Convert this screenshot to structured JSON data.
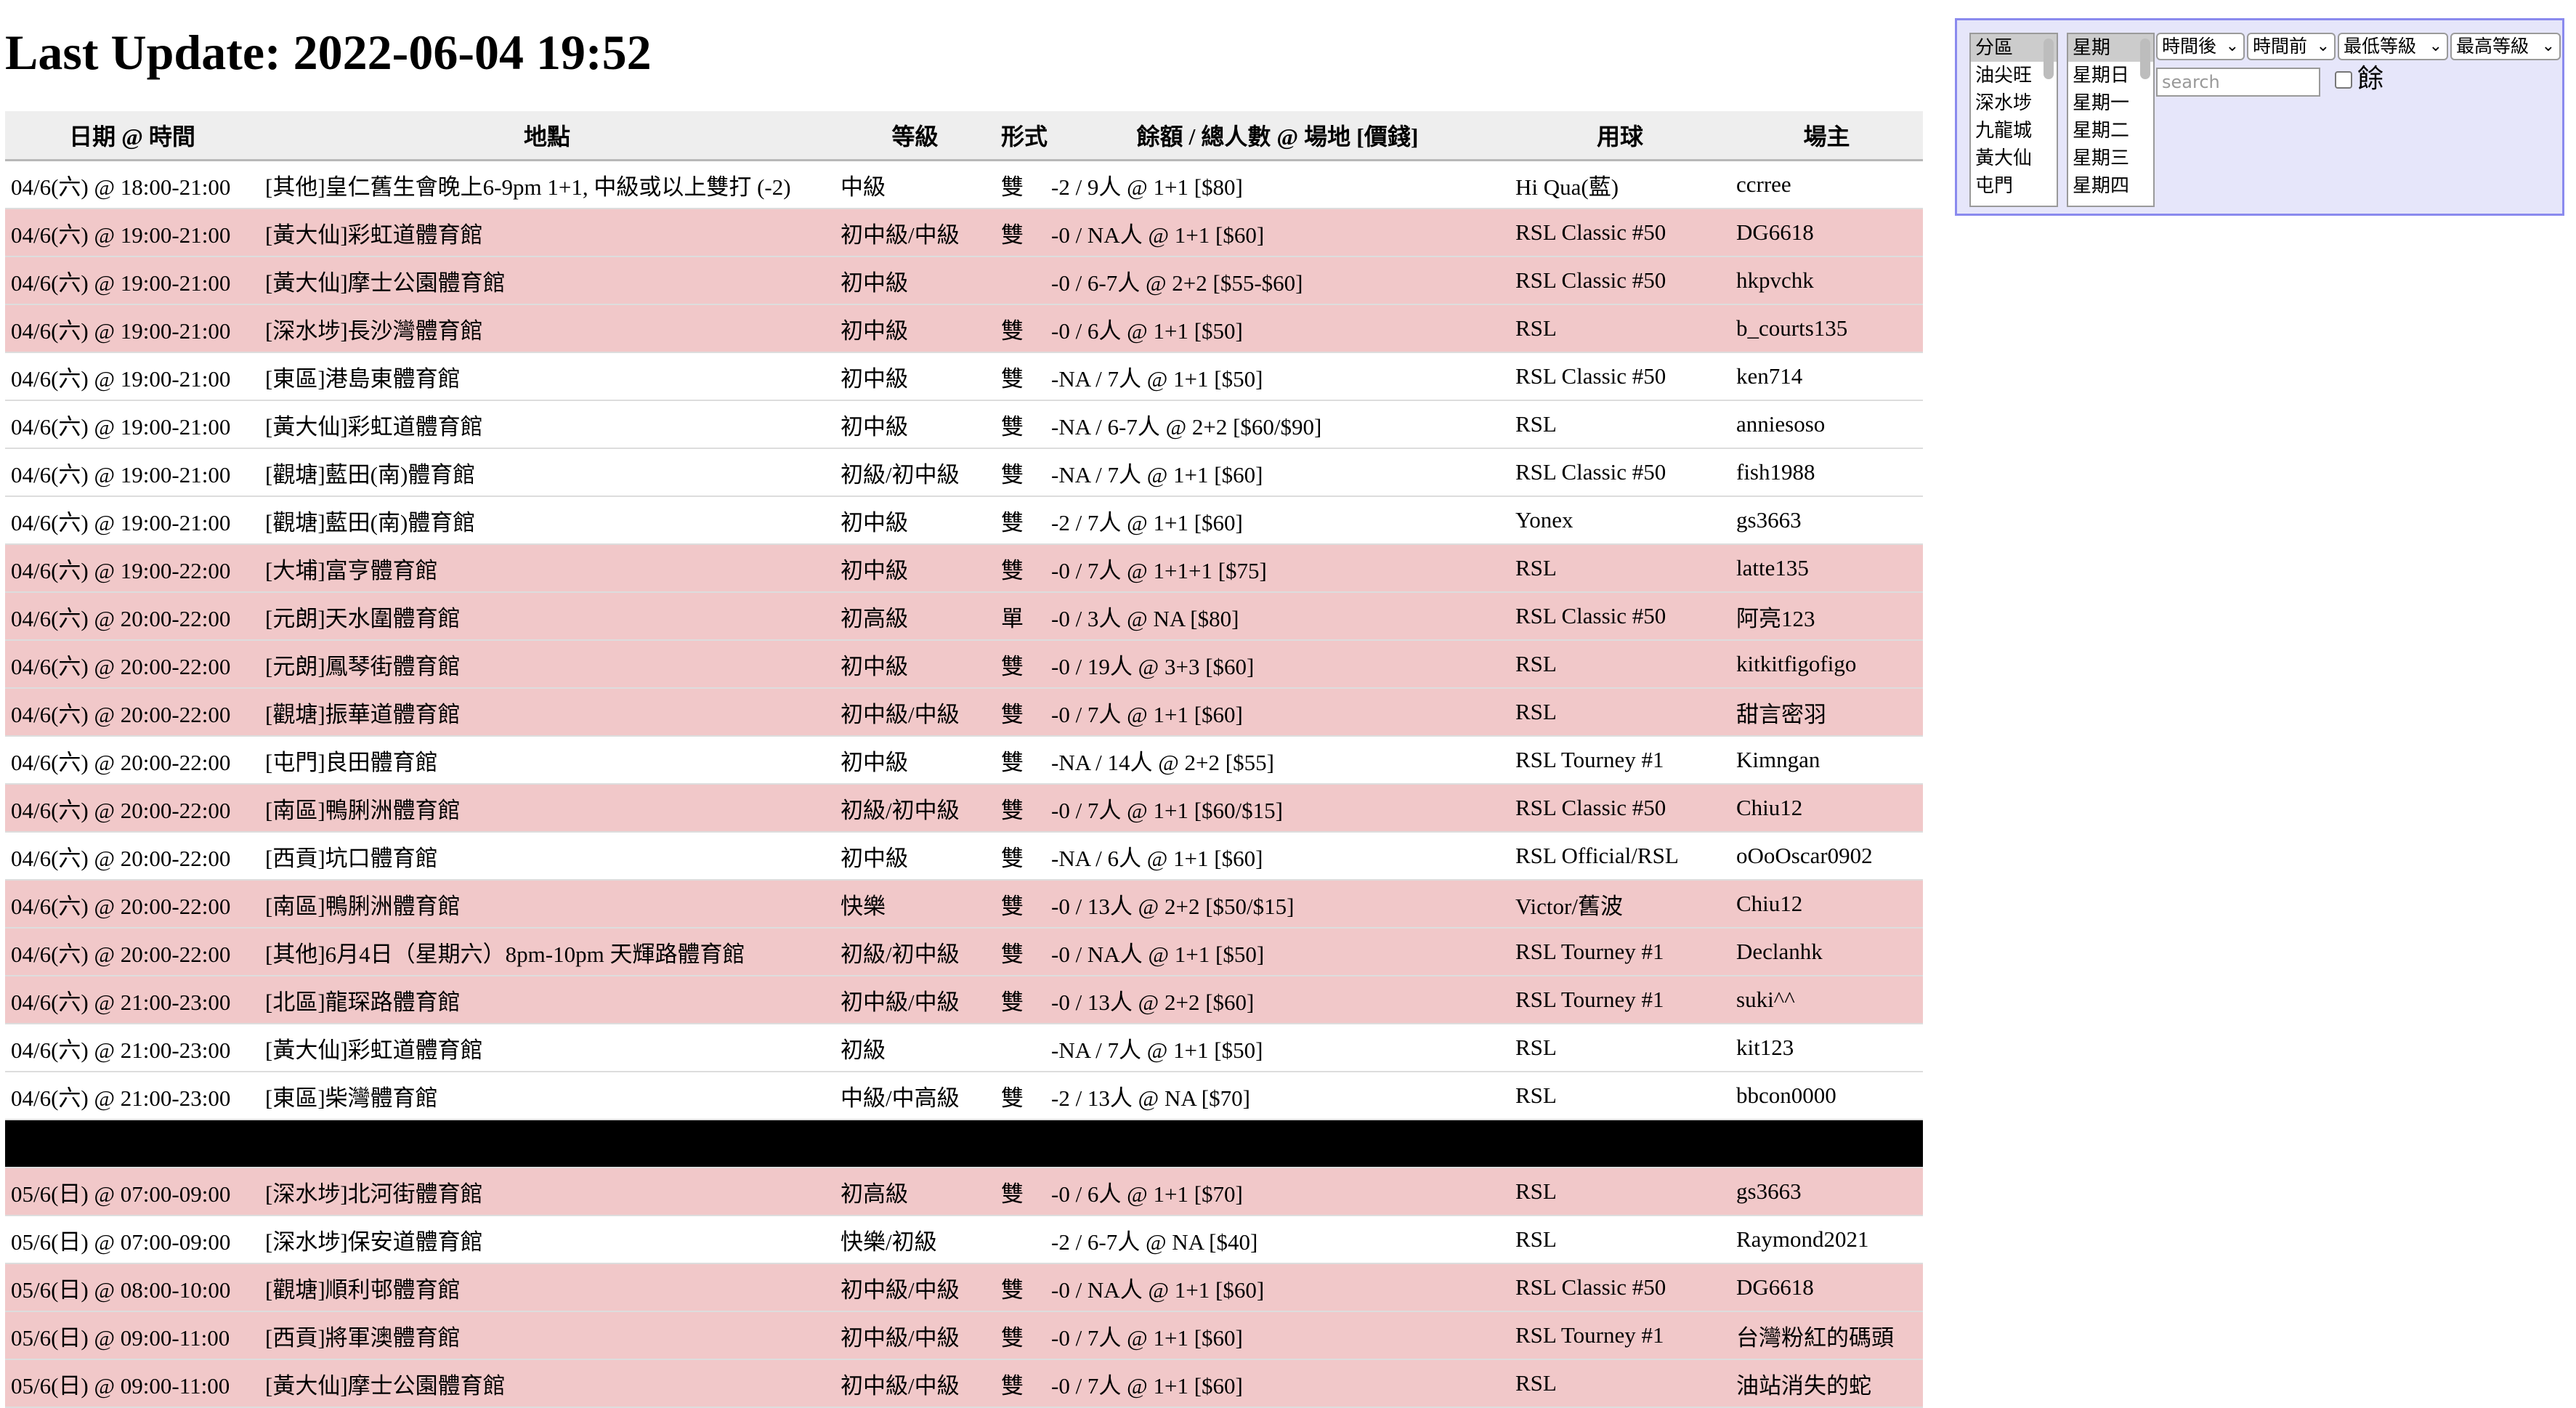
{
  "title": "Last Update: 2022-06-04 19:52",
  "table": {
    "headers": [
      "日期 @ 時間",
      "地點",
      "等級",
      "形式",
      "餘額 / 總人數 @ 場地 [價錢]",
      "用球",
      "場主"
    ],
    "rows": [
      {
        "highlight": false,
        "cells": [
          "04/6(六) @ 18:00-21:00",
          "[其他]皇仁舊生會晚上6-9pm 1+1, 中級或以上雙打 (-2)",
          "中級",
          "雙",
          "-2 / 9人 @ 1+1 [$80]",
          "Hi Qua(藍)",
          "ccrree"
        ]
      },
      {
        "highlight": true,
        "cells": [
          "04/6(六) @ 19:00-21:00",
          "[黃大仙]彩虹道體育館",
          "初中級/中級",
          "雙",
          "-0 / NA人 @ 1+1 [$60]",
          "RSL Classic #50",
          "DG6618"
        ]
      },
      {
        "highlight": true,
        "cells": [
          "04/6(六) @ 19:00-21:00",
          "[黃大仙]摩士公園體育館",
          "初中級",
          "",
          "-0 / 6-7人 @ 2+2 [$55-$60]",
          "RSL Classic #50",
          "hkpvchk"
        ]
      },
      {
        "highlight": true,
        "cells": [
          "04/6(六) @ 19:00-21:00",
          "[深水埗]長沙灣體育館",
          "初中級",
          "雙",
          "-0 / 6人 @ 1+1 [$50]",
          "RSL",
          "b_courts135"
        ]
      },
      {
        "highlight": false,
        "cells": [
          "04/6(六) @ 19:00-21:00",
          "[東區]港島東體育館",
          "初中級",
          "雙",
          "-NA / 7人 @ 1+1 [$50]",
          "RSL Classic #50",
          "ken714"
        ]
      },
      {
        "highlight": false,
        "cells": [
          "04/6(六) @ 19:00-21:00",
          "[黃大仙]彩虹道體育館",
          "初中級",
          "雙",
          "-NA / 6-7人 @ 2+2 [$60/$90]",
          "RSL",
          "anniesoso"
        ]
      },
      {
        "highlight": false,
        "cells": [
          "04/6(六) @ 19:00-21:00",
          "[觀塘]藍田(南)體育館",
          "初級/初中級",
          "雙",
          "-NA / 7人 @ 1+1 [$60]",
          "RSL Classic #50",
          "fish1988"
        ]
      },
      {
        "highlight": false,
        "cells": [
          "04/6(六) @ 19:00-21:00",
          "[觀塘]藍田(南)體育館",
          "初中級",
          "雙",
          "-2 / 7人 @ 1+1 [$60]",
          "Yonex",
          "gs3663"
        ]
      },
      {
        "highlight": true,
        "cells": [
          "04/6(六) @ 19:00-22:00",
          "[大埔]富亨體育館",
          "初中級",
          "雙",
          "-0 / 7人 @ 1+1+1 [$75]",
          "RSL",
          "latte135"
        ]
      },
      {
        "highlight": true,
        "cells": [
          "04/6(六) @ 20:00-22:00",
          "[元朗]天水圍體育館",
          "初高級",
          "單",
          "-0 / 3人 @ NA [$80]",
          "RSL Classic #50",
          "阿亮123"
        ]
      },
      {
        "highlight": true,
        "cells": [
          "04/6(六) @ 20:00-22:00",
          "[元朗]鳳琴街體育館",
          "初中級",
          "雙",
          "-0 / 19人 @ 3+3 [$60]",
          "RSL",
          "kitkitfigofigo"
        ]
      },
      {
        "highlight": true,
        "cells": [
          "04/6(六) @ 20:00-22:00",
          "[觀塘]振華道體育館",
          "初中級/中級",
          "雙",
          "-0 / 7人 @ 1+1 [$60]",
          "RSL",
          "甜言密羽"
        ]
      },
      {
        "highlight": false,
        "cells": [
          "04/6(六) @ 20:00-22:00",
          "[屯門]良田體育館",
          "初中級",
          "雙",
          "-NA / 14人 @ 2+2 [$55]",
          "RSL Tourney #1",
          "Kimngan"
        ]
      },
      {
        "highlight": true,
        "cells": [
          "04/6(六) @ 20:00-22:00",
          "[南區]鴨脷洲體育館",
          "初級/初中級",
          "雙",
          "-0 / 7人 @ 1+1 [$60/$15]",
          "RSL Classic #50",
          "Chiu12"
        ]
      },
      {
        "highlight": false,
        "cells": [
          "04/6(六) @ 20:00-22:00",
          "[西貢]坑口體育館",
          "初中級",
          "雙",
          "-NA / 6人 @ 1+1 [$60]",
          "RSL Official/RSL",
          "oOoOscar0902"
        ]
      },
      {
        "highlight": true,
        "cells": [
          "04/6(六) @ 20:00-22:00",
          "[南區]鴨脷洲體育館",
          "快樂",
          "雙",
          "-0 / 13人 @ 2+2 [$50/$15]",
          "Victor/舊波",
          "Chiu12"
        ]
      },
      {
        "highlight": true,
        "cells": [
          "04/6(六) @ 20:00-22:00",
          "[其他]6月4日（星期六）8pm-10pm 天輝路體育館",
          "初級/初中級",
          "雙",
          "-0 / NA人 @ 1+1 [$50]",
          "RSL Tourney #1",
          "Declanhk"
        ]
      },
      {
        "highlight": true,
        "cells": [
          "04/6(六) @ 21:00-23:00",
          "[北區]龍琛路體育館",
          "初中級/中級",
          "雙",
          "-0 / 13人 @ 2+2 [$60]",
          "RSL Tourney #1",
          "suki^^"
        ]
      },
      {
        "highlight": false,
        "cells": [
          "04/6(六) @ 21:00-23:00",
          "[黃大仙]彩虹道體育館",
          "初級",
          "",
          "-NA / 7人 @ 1+1 [$50]",
          "RSL",
          "kit123"
        ]
      },
      {
        "highlight": false,
        "cells": [
          "04/6(六) @ 21:00-23:00",
          "[東區]柴灣體育館",
          "中級/中高級",
          "雙",
          "-2 / 13人 @ NA [$70]",
          "RSL",
          "bbcon0000"
        ]
      },
      {
        "separator": true
      },
      {
        "highlight": true,
        "cells": [
          "05/6(日) @ 07:00-09:00",
          "[深水埗]北河街體育館",
          "初高級",
          "雙",
          "-0 / 6人 @ 1+1 [$70]",
          "RSL",
          "gs3663"
        ]
      },
      {
        "highlight": false,
        "cells": [
          "05/6(日) @ 07:00-09:00",
          "[深水埗]保安道體育館",
          "快樂/初級",
          "",
          "-2 / 6-7人 @ NA [$40]",
          "RSL",
          "Raymond2021"
        ]
      },
      {
        "highlight": true,
        "cells": [
          "05/6(日) @ 08:00-10:00",
          "[觀塘]順利邨體育館",
          "初中級/中級",
          "雙",
          "-0 / NA人 @ 1+1 [$60]",
          "RSL Classic #50",
          "DG6618"
        ]
      },
      {
        "highlight": true,
        "cells": [
          "05/6(日) @ 09:00-11:00",
          "[西貢]將軍澳體育館",
          "初中級/中級",
          "雙",
          "-0 / 7人 @ 1+1 [$60]",
          "RSL Tourney #1",
          "台灣粉紅的碼頭"
        ]
      },
      {
        "highlight": true,
        "cells": [
          "05/6(日) @ 09:00-11:00",
          "[黃大仙]摩士公園體育館",
          "初中級/中級",
          "雙",
          "-0 / 7人 @ 1+1 [$60]",
          "RSL",
          "油站消失的蛇"
        ]
      }
    ]
  },
  "filters": {
    "region_options": [
      "分區",
      "油尖旺",
      "深水埗",
      "九龍城",
      "黃大仙",
      "屯門"
    ],
    "weekday_options": [
      "星期",
      "星期日",
      "星期一",
      "星期二",
      "星期三",
      "星期四"
    ],
    "selects": [
      "時間後",
      "時間前",
      "最低等級",
      "最高等級"
    ],
    "search_placeholder": "search",
    "remain_label": "餘"
  },
  "colors": {
    "highlight_row": "#f1c8c9",
    "panel_bg": "#e6e6fa",
    "panel_border": "#8a8aee"
  }
}
